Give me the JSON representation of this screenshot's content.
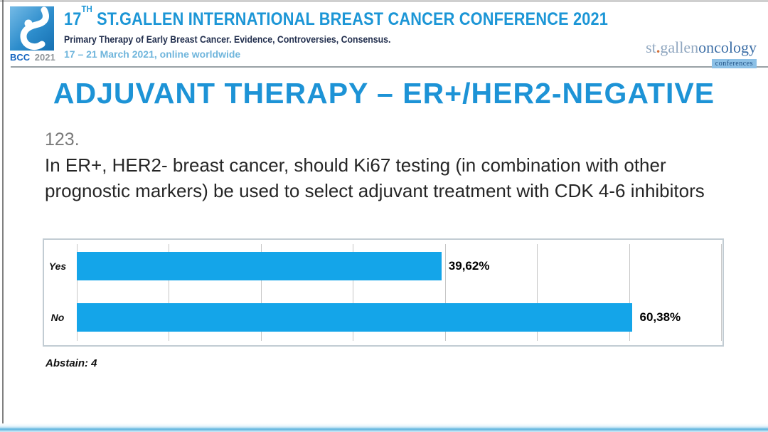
{
  "header": {
    "logo": {
      "name": "BCC",
      "year": "2021"
    },
    "title": {
      "prefix": "17",
      "superscript": "TH",
      "rest": "ST.GALLEN INTERNATIONAL BREAST CANCER CONFERENCE 2021"
    },
    "subtitle": "Primary Therapy of Early Breast Cancer. Evidence, Controversies, Consensus.",
    "dates": "17 – 21 March 2021, online worldwide",
    "org": {
      "st": "st",
      "dot": ".",
      "gallen": "gallen",
      "oncology": "oncology",
      "conferences": "conferences"
    }
  },
  "slide": {
    "title": "ADJUVANT THERAPY – ER+/HER2-NEGATIVE",
    "question_number": "123.",
    "question_text": "In ER+, HER2- breast cancer, should Ki67 testing (in combination with other prognostic markers) be used to select adjuvant treatment with CDK 4-6 inhibitors",
    "abstain_label": "Abstain: 4"
  },
  "chart_data": {
    "type": "bar",
    "orientation": "horizontal",
    "title": "",
    "xlabel": "",
    "ylabel": "",
    "categories": [
      "Yes",
      "No"
    ],
    "values": [
      39.62,
      60.38
    ],
    "value_labels": [
      "39,62%",
      "60,38%"
    ],
    "xlim": [
      0,
      70
    ],
    "gridline_interval": 10,
    "grid": true,
    "legend": false,
    "bar_color": "#14a5e9"
  },
  "colors": {
    "header_title_blue": "#1c96d6",
    "subtitle_navy": "#23304f",
    "dates_light_blue": "#6fb5dc",
    "slide_title_blue": "#1d93d6",
    "bar_blue": "#14a5e9",
    "org_dot_orange": "#d2703a",
    "org_oncology_blue": "#3c6ea6",
    "conferences_badge_bg": "#8cc0e6"
  }
}
